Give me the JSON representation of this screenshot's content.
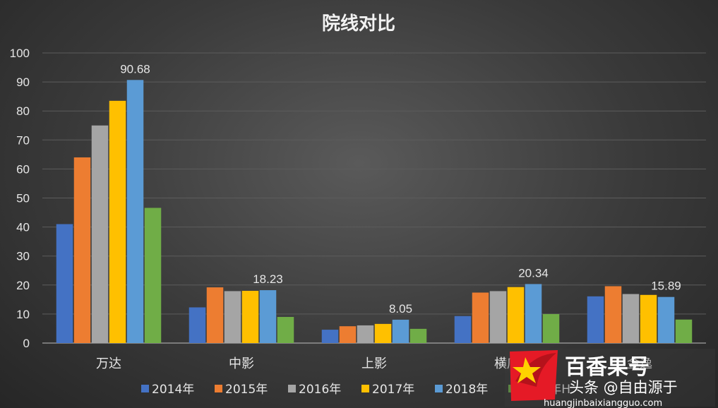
{
  "chart_data": {
    "type": "bar",
    "title": "院线对比",
    "xlabel": "",
    "ylabel": "",
    "ylim": [
      0,
      100
    ],
    "yticks": [
      0,
      10,
      20,
      30,
      40,
      50,
      60,
      70,
      80,
      90,
      100
    ],
    "categories": [
      "万达",
      "中影",
      "上影",
      "横店",
      "金逸"
    ],
    "series": [
      {
        "name": "2014年",
        "color": "#4472c4",
        "values": [
          41,
          12.3,
          4.6,
          9.3,
          16.1
        ]
      },
      {
        "name": "2015年",
        "color": "#ed7d31",
        "values": [
          64,
          19.2,
          5.8,
          17.4,
          19.6
        ]
      },
      {
        "name": "2016年",
        "color": "#a5a5a5",
        "values": [
          75,
          17.9,
          6.1,
          17.9,
          16.9
        ]
      },
      {
        "name": "2017年",
        "color": "#ffc000",
        "values": [
          83.5,
          18,
          6.6,
          19.3,
          16.6
        ]
      },
      {
        "name": "2018年",
        "color": "#5b9bd5",
        "values": [
          90.68,
          18.23,
          8.05,
          20.34,
          15.89
        ]
      },
      {
        "name": "2019年H",
        "color": "#70ad47",
        "values": [
          46.6,
          9,
          4.9,
          10,
          8.1
        ]
      }
    ],
    "data_labels": {
      "series": "2018年",
      "values": [
        "90.68",
        "18.23",
        "8.05",
        "20.34",
        "15.89"
      ]
    },
    "grid": true,
    "legend_position": "bottom"
  },
  "watermark": {
    "brand": "百香果号",
    "text": "头条 @自由源于",
    "url": "huangjinbaixiangguo.com"
  }
}
